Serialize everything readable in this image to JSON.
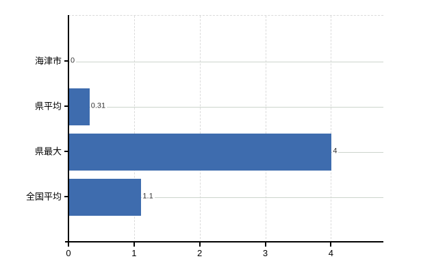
{
  "chart_data": {
    "type": "bar",
    "orientation": "horizontal",
    "title": "",
    "xlabel": "",
    "ylabel": "",
    "categories": [
      "海津市",
      "県平均",
      "県最大",
      "全国平均"
    ],
    "values": [
      0,
      0.31,
      4,
      1.1
    ],
    "value_labels": [
      "0",
      "0.31",
      "4",
      "1.1"
    ],
    "x_ticks": [
      0,
      1,
      2,
      3,
      4
    ],
    "x_tick_labels": [
      "0",
      "1",
      "2",
      "3",
      "4"
    ],
    "xlim": [
      0,
      4.8
    ],
    "grid": "on",
    "legend": "none",
    "colors": {
      "bar": "#3e6cae",
      "h_gridline": "#ccd4cc",
      "v_gridline": "#dadada",
      "axis": "#000000",
      "value_text": "#333333",
      "label_text": "#000000",
      "background": "#ffffff"
    }
  }
}
